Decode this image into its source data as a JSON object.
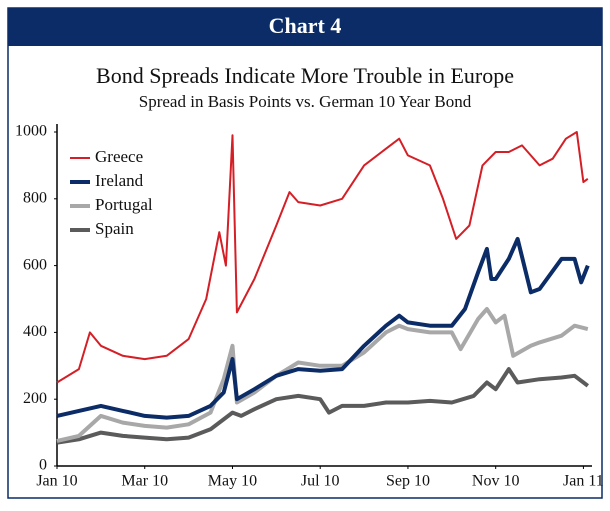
{
  "chart_data": {
    "type": "line",
    "header": "Chart 4",
    "title": "Bond Spreads Indicate More Trouble in Europe",
    "subtitle": "Spread in Basis Points vs. German 10 Year Bond",
    "xlim": [
      0,
      12.15
    ],
    "xticks": [
      {
        "value": 0,
        "label": "Jan 10"
      },
      {
        "value": 2,
        "label": "Mar 10"
      },
      {
        "value": 4,
        "label": "May 10"
      },
      {
        "value": 6,
        "label": "Jul 10"
      },
      {
        "value": 8,
        "label": "Sep 10"
      },
      {
        "value": 10,
        "label": "Nov 10"
      },
      {
        "value": 12,
        "label": "Jan 11"
      }
    ],
    "ylim": [
      0,
      1000
    ],
    "yticks": [
      0,
      200,
      400,
      600,
      800,
      1000
    ],
    "legend": "top-left",
    "series": [
      {
        "name": "Greece",
        "color": "#d41f26",
        "width": 2,
        "x": [
          0,
          0.5,
          0.75,
          1,
          1.5,
          2,
          2.5,
          3,
          3.4,
          3.7,
          3.85,
          4.0,
          4.1,
          4.5,
          5,
          5.3,
          5.5,
          6,
          6.5,
          7,
          7.5,
          7.8,
          8,
          8.5,
          8.8,
          9.1,
          9.4,
          9.7,
          10,
          10.3,
          10.6,
          11,
          11.3,
          11.6,
          11.85,
          12.0,
          12.1
        ],
        "values": [
          250,
          290,
          400,
          360,
          330,
          320,
          330,
          380,
          500,
          700,
          600,
          990,
          460,
          560,
          720,
          820,
          790,
          780,
          800,
          900,
          950,
          980,
          930,
          900,
          800,
          680,
          720,
          900,
          940,
          940,
          960,
          900,
          920,
          980,
          1000,
          850,
          860
        ]
      },
      {
        "name": "Ireland",
        "color": "#0b2c66",
        "width": 4,
        "x": [
          0,
          0.5,
          1,
          1.5,
          2,
          2.5,
          3,
          3.5,
          3.8,
          4.0,
          4.1,
          4.5,
          5,
          5.5,
          6,
          6.5,
          7,
          7.5,
          7.8,
          8,
          8.5,
          9,
          9.3,
          9.6,
          9.8,
          9.9,
          10,
          10.3,
          10.5,
          10.8,
          11,
          11.5,
          11.8,
          11.95,
          12.1
        ],
        "values": [
          150,
          165,
          180,
          165,
          150,
          145,
          150,
          180,
          220,
          320,
          200,
          230,
          270,
          290,
          285,
          290,
          360,
          420,
          450,
          430,
          420,
          420,
          470,
          580,
          650,
          560,
          560,
          620,
          680,
          520,
          530,
          620,
          620,
          550,
          600
        ]
      },
      {
        "name": "Portugal",
        "color": "#a8a8a8",
        "width": 4,
        "x": [
          0,
          0.5,
          1,
          1.5,
          2,
          2.5,
          3,
          3.5,
          3.8,
          4.0,
          4.1,
          4.5,
          5,
          5.5,
          6,
          6.5,
          7,
          7.5,
          7.8,
          8,
          8.5,
          9,
          9.2,
          9.6,
          9.8,
          10,
          10.2,
          10.4,
          10.8,
          11,
          11.5,
          11.8,
          12.1
        ],
        "values": [
          75,
          90,
          150,
          130,
          120,
          115,
          125,
          160,
          260,
          360,
          190,
          220,
          270,
          310,
          300,
          300,
          340,
          400,
          420,
          410,
          400,
          400,
          350,
          440,
          470,
          430,
          450,
          330,
          360,
          370,
          390,
          420,
          410
        ]
      },
      {
        "name": "Spain",
        "color": "#5b5b5b",
        "width": 4,
        "x": [
          0,
          0.5,
          1,
          1.5,
          2,
          2.5,
          3,
          3.5,
          4,
          4.2,
          4.5,
          5,
          5.5,
          6,
          6.2,
          6.5,
          7,
          7.5,
          8,
          8.5,
          9,
          9.5,
          9.8,
          10,
          10.3,
          10.5,
          11,
          11.5,
          11.8,
          12.1
        ],
        "values": [
          70,
          80,
          100,
          90,
          85,
          80,
          85,
          110,
          160,
          150,
          170,
          200,
          210,
          200,
          160,
          180,
          180,
          190,
          190,
          195,
          190,
          210,
          250,
          230,
          290,
          250,
          260,
          265,
          270,
          240
        ]
      }
    ]
  }
}
